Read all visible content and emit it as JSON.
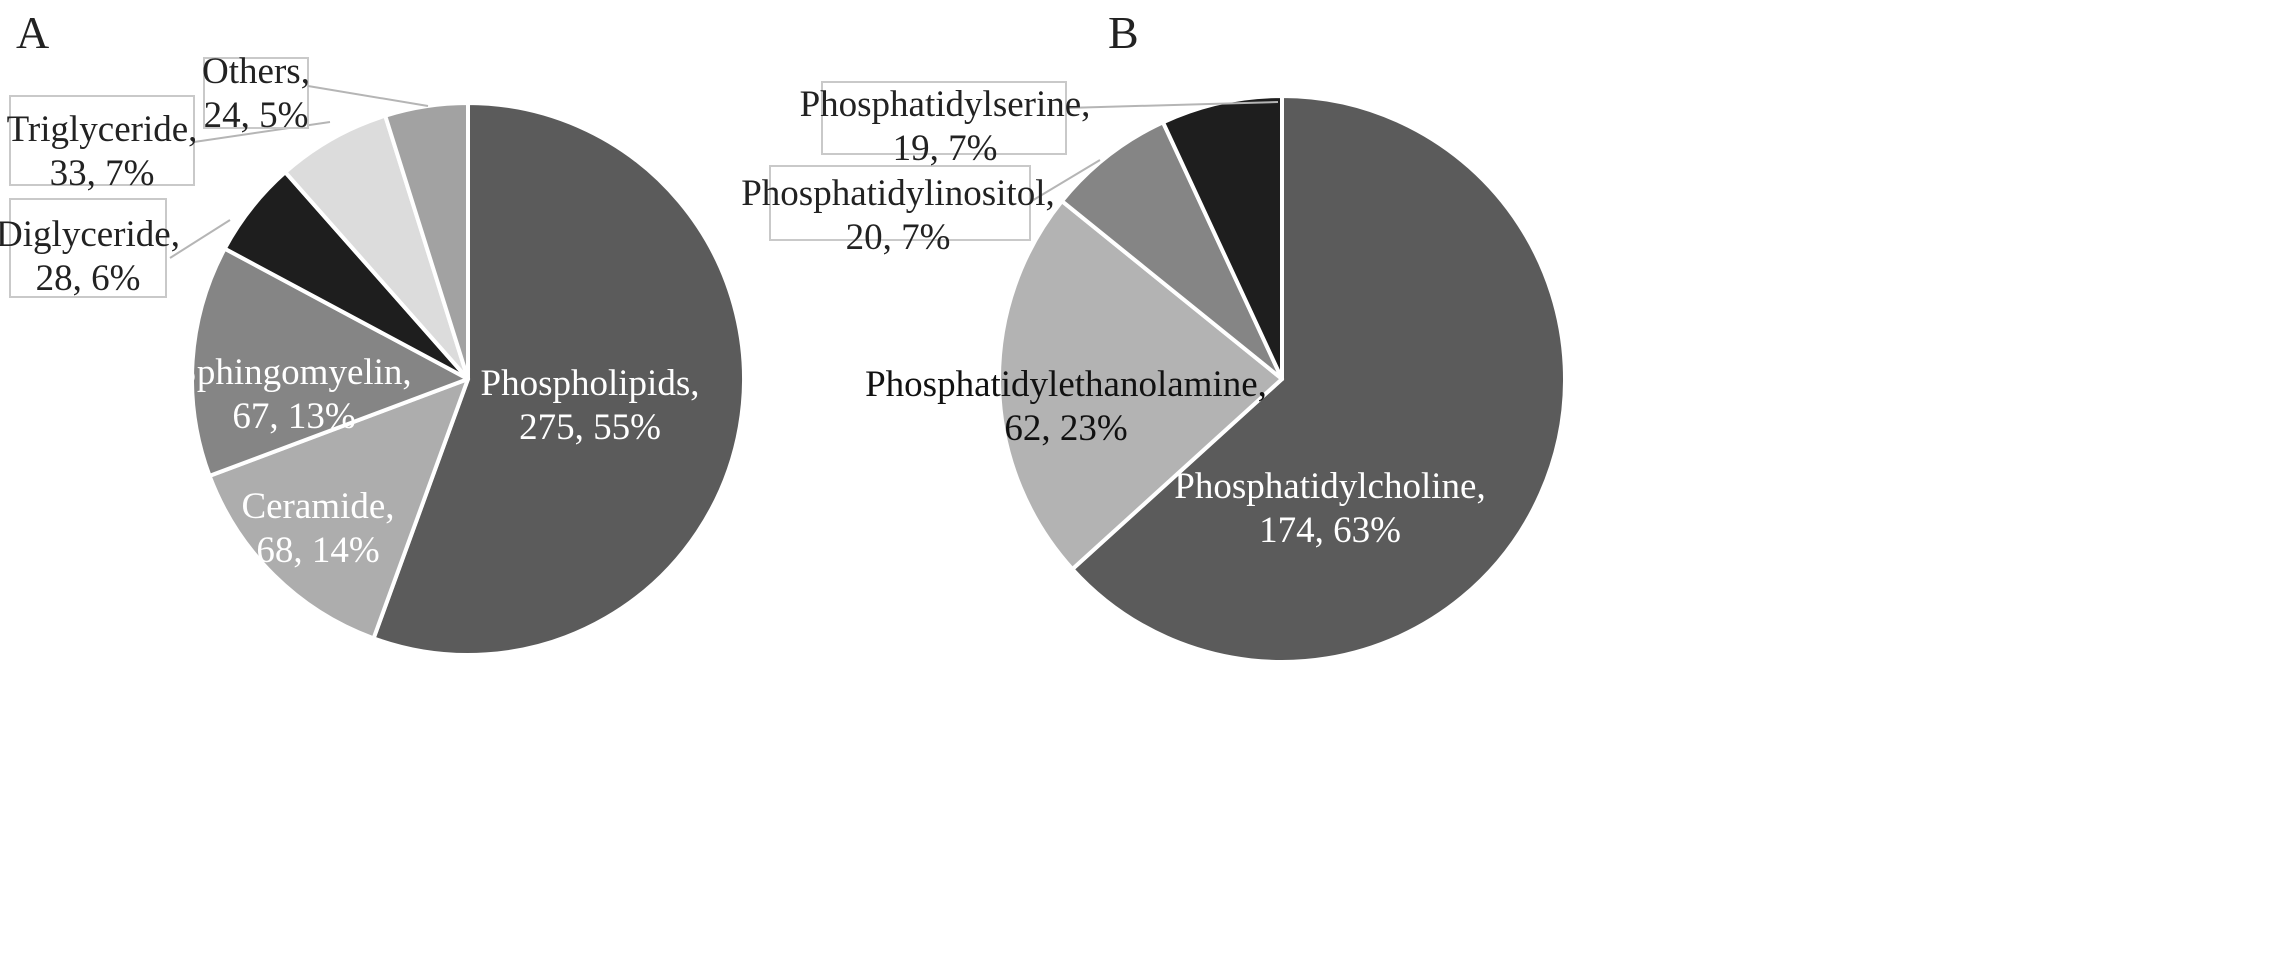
{
  "chart_data": [
    {
      "type": "pie",
      "panel_label": "A",
      "start": "12 o'clock",
      "direction": "clockwise",
      "slices": [
        {
          "name": "Phospholipids",
          "value": 275,
          "percent": "55%",
          "color": "#5b5b5b",
          "label_color": "#ffffff",
          "label_lines": [
            "Phospholipids,",
            "275, 55%"
          ]
        },
        {
          "name": "Ceramide",
          "value": 68,
          "percent": "14%",
          "color": "#adadad",
          "label_color": "#ffffff",
          "label_lines": [
            "Ceramide,",
            "68, 14%"
          ]
        },
        {
          "name": "Sphingomyelin",
          "value": 67,
          "percent": "13%",
          "color": "#858585",
          "label_color": "#ffffff",
          "label_lines": [
            "Sphingomyelin,",
            "67, 13%"
          ]
        },
        {
          "name": "Diglyceride",
          "value": 28,
          "percent": "6%",
          "color": "#1e1e1e",
          "label_color": "#222222",
          "label_lines": [
            "Diglyceride,",
            "28, 6%"
          ],
          "callout": true
        },
        {
          "name": "Triglyceride",
          "value": 33,
          "percent": "7%",
          "color": "#dcdcdc",
          "label_color": "#222222",
          "label_lines": [
            "Triglyceride,",
            "33, 7%"
          ],
          "callout": true
        },
        {
          "name": "Others",
          "value": 24,
          "percent": "5%",
          "color": "#a2a2a2",
          "label_color": "#222222",
          "label_lines": [
            "Others,",
            "24, 5%"
          ],
          "callout": true
        }
      ]
    },
    {
      "type": "pie",
      "panel_label": "B",
      "start": "12 o'clock",
      "direction": "clockwise",
      "slices": [
        {
          "name": "Phosphatidylcholine",
          "value": 174,
          "percent": "63%",
          "color": "#5b5b5b",
          "label_color": "#ffffff",
          "label_lines": [
            "Phosphatidylcholine,",
            "174, 63%"
          ]
        },
        {
          "name": "Phosphatidylethanolamine",
          "value": 62,
          "percent": "23%",
          "color": "#b3b3b3",
          "label_color": "#111111",
          "label_lines": [
            "Phosphatidylethanolamine,",
            "62, 23%"
          ]
        },
        {
          "name": "Phosphatidylinositol",
          "value": 20,
          "percent": "7%",
          "color": "#858585",
          "label_color": "#222222",
          "label_lines": [
            "Phosphatidylinositol,",
            "20, 7%"
          ],
          "callout": true
        },
        {
          "name": "Phosphatidylserine",
          "value": 19,
          "percent": "7%",
          "color": "#1e1e1e",
          "label_color": "#222222",
          "label_lines": [
            "Phosphatidylserine,",
            "19, 7%"
          ],
          "callout": true
        }
      ]
    }
  ]
}
